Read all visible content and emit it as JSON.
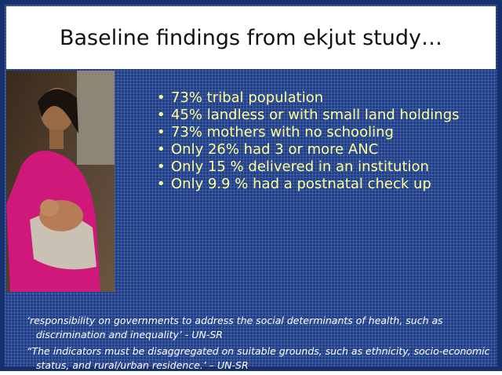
{
  "slide": {
    "title": "Baseline findings from ekjut study…",
    "bullets": [
      "73%  tribal population",
      "45%  landless or with small land holdings",
      "73%  mothers with no schooling",
      "Only 26% had 3 or more ANC",
      "Only 15 % delivered in an institution",
      "Only 9.9 % had a postnatal check   up"
    ],
    "quotes": [
      "‘responsibility on governments to address the social determinants of health, such as discrimination and inequality’ - UN-SR",
      "“The indicators must be disaggregated on suitable grounds, such as ethnicity, socio-economic status, and rural/urban residence.’ – UN-SR"
    ]
  }
}
